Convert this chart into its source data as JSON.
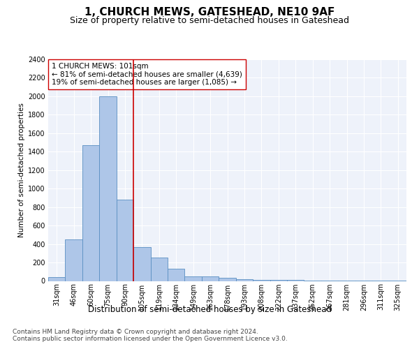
{
  "title": "1, CHURCH MEWS, GATESHEAD, NE10 9AF",
  "subtitle": "Size of property relative to semi-detached houses in Gateshead",
  "xlabel": "Distribution of semi-detached houses by size in Gateshead",
  "ylabel": "Number of semi-detached properties",
  "categories": [
    "31sqm",
    "46sqm",
    "60sqm",
    "75sqm",
    "90sqm",
    "105sqm",
    "119sqm",
    "134sqm",
    "149sqm",
    "163sqm",
    "178sqm",
    "193sqm",
    "208sqm",
    "222sqm",
    "237sqm",
    "252sqm",
    "267sqm",
    "281sqm",
    "296sqm",
    "311sqm",
    "325sqm"
  ],
  "values": [
    40,
    450,
    1470,
    2000,
    880,
    370,
    255,
    130,
    50,
    50,
    35,
    20,
    15,
    10,
    8,
    5,
    5,
    3,
    2,
    2,
    2
  ],
  "bar_color": "#aec6e8",
  "bar_edge_color": "#5a8fc2",
  "property_line_x": 4.5,
  "property_size": "101sqm",
  "pct_smaller": 81,
  "count_smaller": 4639,
  "pct_larger": 19,
  "count_larger": 1085,
  "annotation_label": "1 CHURCH MEWS: 101sqm",
  "annotation_line1": "← 81% of semi-detached houses are smaller (4,639)",
  "annotation_line2": "19% of semi-detached houses are larger (1,085) →",
  "ylim": [
    0,
    2400
  ],
  "yticks": [
    0,
    200,
    400,
    600,
    800,
    1000,
    1200,
    1400,
    1600,
    1800,
    2000,
    2200,
    2400
  ],
  "plot_bg_color": "#eef2fa",
  "footer_line1": "Contains HM Land Registry data © Crown copyright and database right 2024.",
  "footer_line2": "Contains public sector information licensed under the Open Government Licence v3.0.",
  "title_fontsize": 11,
  "subtitle_fontsize": 9,
  "ylabel_fontsize": 7.5,
  "xlabel_fontsize": 8.5,
  "annotation_fontsize": 7.5,
  "footer_fontsize": 6.5,
  "tick_fontsize": 7,
  "red_line_color": "#cc0000",
  "annotation_box_color": "#ffffff",
  "annotation_box_edge": "#cc0000"
}
